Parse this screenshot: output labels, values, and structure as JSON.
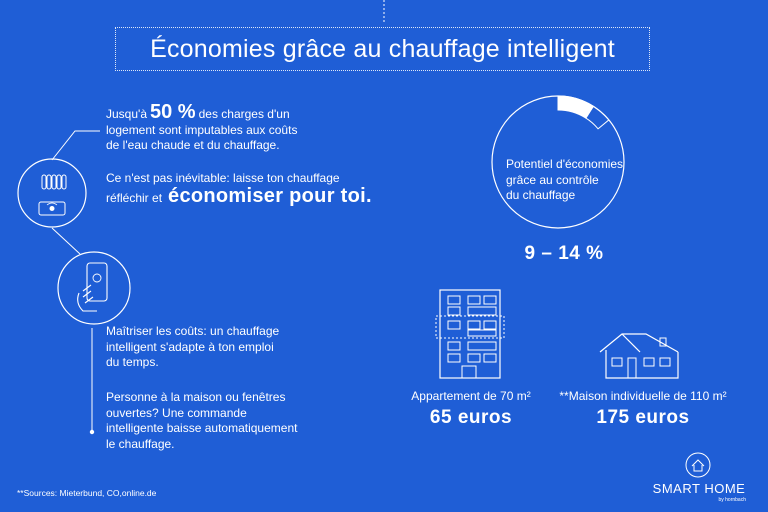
{
  "title": "Économies grâce au chauffage intelligent",
  "intro": {
    "prefix": "Jusqu'à",
    "highlight": "50 %",
    "suffix_line1": "des charges d'un",
    "line2": "logement sont imputables aux coûts",
    "line3": "de l'eau chaude et du chauffage."
  },
  "inevitable": {
    "line1": "Ce n'est pas inévitable: laisse ton chauffage",
    "line2_prefix": "réfléchir et",
    "highlight": "économiser pour toi."
  },
  "control": {
    "lines": [
      "Maîtriser les coûts: un chauffage",
      "intelligent s'adapte à ton emploi",
      "du temps."
    ]
  },
  "absence": {
    "lines": [
      "Personne à la maison ou fenêtres",
      "ouvertes? Une commande",
      "intelligente baisse automatiquement",
      "le chauffage."
    ]
  },
  "potential": {
    "lines": [
      "Potentiel d'économies",
      "grâce au contrôle",
      "du chauffage"
    ],
    "range": "9 – 14 %",
    "arc_from_pct": 9,
    "arc_to_pct": 14
  },
  "apartment": {
    "label": "Appartement de 70 m²",
    "value": "65 euros"
  },
  "house": {
    "label": "**Maison individuelle de 110 m²",
    "value": "175 euros"
  },
  "sources": "**Sources: Mieterbund, CO,online.de",
  "brand": {
    "name": "SMART HOME",
    "sub": "by hornbach"
  },
  "colors": {
    "background": "#1f5ed6",
    "foreground": "#ffffff"
  },
  "icons": [
    "radiator-icon",
    "thermostat-icon",
    "smartphone-hand-icon",
    "apartment-building-icon",
    "house-icon",
    "smart-home-logo-icon"
  ]
}
